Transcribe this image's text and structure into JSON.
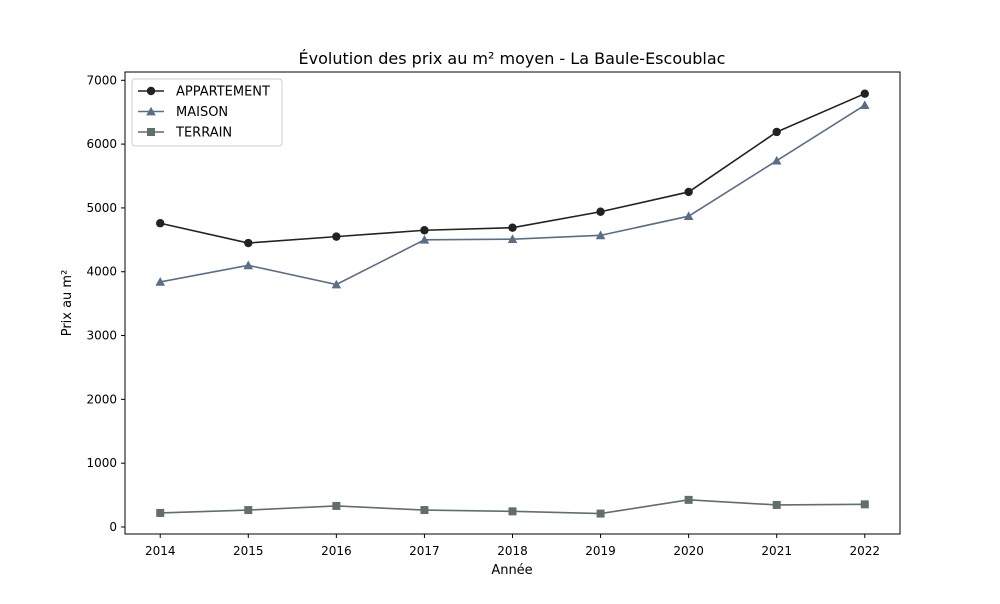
{
  "chart_data": {
    "type": "line",
    "title": "Évolution des prix au m² moyen - La Baule-Escoublac",
    "xlabel": "Année",
    "ylabel": "Prix au m²",
    "x": [
      2014,
      2015,
      2016,
      2017,
      2018,
      2019,
      2020,
      2021,
      2022
    ],
    "xlim": [
      2013.6,
      2022.4
    ],
    "ylim": [
      -110,
      7130
    ],
    "yticks": [
      0,
      1000,
      2000,
      3000,
      4000,
      5000,
      6000,
      7000
    ],
    "grid": false,
    "legend_position": "upper left",
    "series": [
      {
        "name": "APPARTEMENT",
        "marker": "circle",
        "color": "#222222",
        "values": [
          4760,
          4450,
          4550,
          4650,
          4690,
          4940,
          5250,
          6190,
          6790
        ]
      },
      {
        "name": "MAISON",
        "marker": "triangle",
        "color": "#5b6e87",
        "values": [
          3840,
          4100,
          3800,
          4500,
          4510,
          4570,
          4870,
          5740,
          6610
        ]
      },
      {
        "name": "TERRAIN",
        "marker": "square",
        "color": "#5f6f6b",
        "values": [
          220,
          265,
          330,
          265,
          245,
          210,
          425,
          345,
          355
        ]
      }
    ]
  }
}
